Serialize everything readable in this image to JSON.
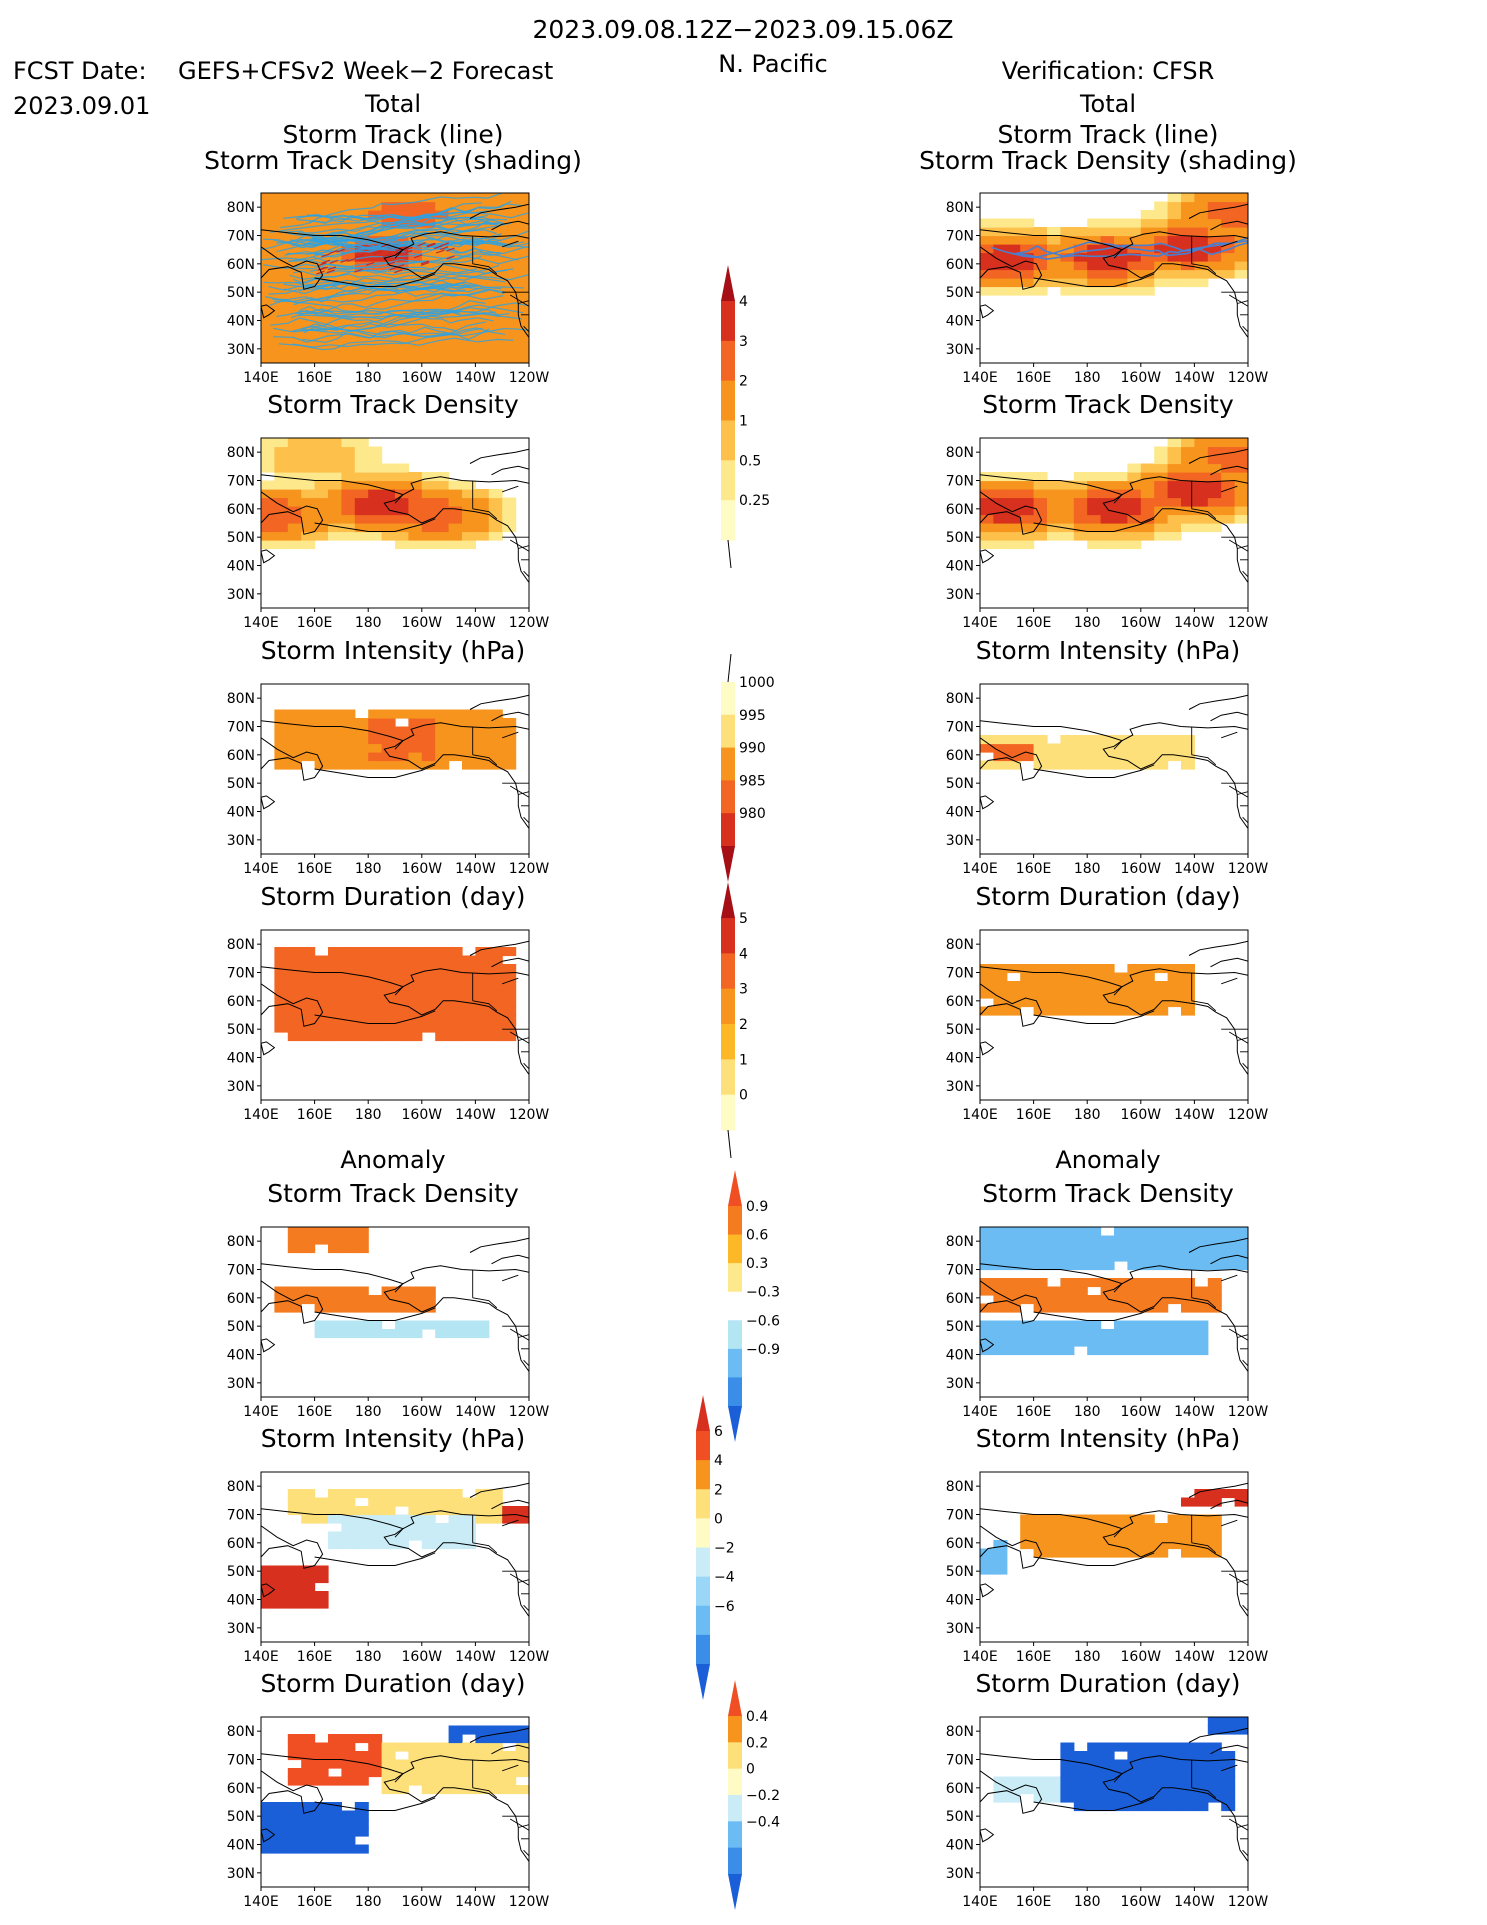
{
  "header": {
    "date_range": "2023.09.08.12Z−2023.09.15.06Z",
    "region": "N. Pacific",
    "fcst_prefix": "FCST Date:",
    "fcst_model": "GEFS+CFSv2 Week−2 Forecast",
    "fcst_date": "2023.09.01",
    "verification": "Verification: CFSR",
    "section_total": "Total",
    "section_anomaly": "Anomaly"
  },
  "colors": {
    "red_text": "#e8202a",
    "blue_text": "#1f3cf0",
    "track_fcst": "#29a3e6",
    "track_obs": "#4a7fd0"
  },
  "panel_titles": {
    "track_line": "Storm Track (line)",
    "track_shading": "Storm Track Density (shading)",
    "density": "Storm Track Density",
    "intensity": "Storm Intensity (hPa)",
    "duration": "Storm Duration (day)"
  },
  "axes": {
    "lat_ticks": [
      "80N",
      "70N",
      "60N",
      "50N",
      "40N",
      "30N"
    ],
    "lon_ticks": [
      "140E",
      "160E",
      "180",
      "160W",
      "140W",
      "120W"
    ]
  },
  "colorbars": {
    "density": {
      "labels": [
        "4",
        "3",
        "2",
        "1",
        "0.5",
        "0.25"
      ],
      "colors": [
        "#a50f15",
        "#d7301f",
        "#f26522",
        "#f7941d",
        "#fdc04a",
        "#fde98c",
        "#fffbc4"
      ]
    },
    "intensity": {
      "labels": [
        "1000",
        "995",
        "990",
        "985",
        "980"
      ],
      "colors": [
        "#fffbc4",
        "#fde07a",
        "#f7941d",
        "#f26522",
        "#d7301f",
        "#a50f15"
      ]
    },
    "duration": {
      "labels": [
        "5",
        "4",
        "3",
        "2",
        "1",
        "0"
      ],
      "colors": [
        "#a50f15",
        "#d7301f",
        "#f26522",
        "#f7941d",
        "#fdb827",
        "#fde07a",
        "#fffbc4"
      ]
    },
    "anom_density": {
      "labels": [
        "0.9",
        "0.6",
        "0.3",
        "−0.3",
        "−0.6",
        "−0.9"
      ],
      "colors": [
        "#f04e23",
        "#f47b20",
        "#fdb827",
        "#fde98c",
        "#ffffff",
        "#b3e5f3",
        "#6bbcf2",
        "#3a8ee8",
        "#1a5fd8"
      ]
    },
    "anom_intensity": {
      "labels": [
        "6",
        "4",
        "2",
        "0",
        "−2",
        "−4",
        "−6"
      ],
      "colors": [
        "#d7301f",
        "#f04e23",
        "#f7941d",
        "#fde07a",
        "#fffbc4",
        "#c9ecf7",
        "#9ad6f5",
        "#6bbcf2",
        "#3a8ee8",
        "#1a5fd8"
      ]
    },
    "anom_duration": {
      "labels": [
        "0.4",
        "0.2",
        "0",
        "−0.2",
        "−0.4"
      ],
      "colors": [
        "#f04e23",
        "#f7941d",
        "#fde07a",
        "#fffbc4",
        "#c9ecf7",
        "#6bbcf2",
        "#3a8ee8",
        "#1a5fd8"
      ]
    }
  },
  "chart_data": [
    {
      "type": "heatmap",
      "panel": "fcst_total_track",
      "title": "Storm Track (line) / Storm Track Density (shading)",
      "xlim": [
        140,
        240
      ],
      "ylim": [
        25,
        85
      ],
      "blobs": [
        {
          "lon": 185,
          "lat": 64,
          "value": 4
        },
        {
          "lon": 195,
          "lat": 78,
          "value": 3
        },
        {
          "lon": 225,
          "lat": 70,
          "value": 2
        }
      ],
      "background_value": 1,
      "tracks": "many"
    },
    {
      "type": "heatmap",
      "panel": "obs_total_track",
      "title": "Storm Track (line) / Storm Track Density (shading)",
      "xlim": [
        140,
        240
      ],
      "ylim": [
        25,
        85
      ],
      "blobs": [
        {
          "lon": 150,
          "lat": 62,
          "value": 4
        },
        {
          "lon": 188,
          "lat": 62,
          "value": 4
        },
        {
          "lon": 218,
          "lat": 66,
          "value": 4
        },
        {
          "lon": 237,
          "lat": 78,
          "value": 3
        }
      ],
      "background_value": 0,
      "tracks": "few"
    },
    {
      "type": "heatmap",
      "panel": "fcst_total_density",
      "title": "Storm Track Density",
      "xlim": [
        140,
        240
      ],
      "ylim": [
        25,
        85
      ],
      "blobs": [
        {
          "lon": 145,
          "lat": 58,
          "value": 3
        },
        {
          "lon": 185,
          "lat": 62,
          "value": 4
        },
        {
          "lon": 205,
          "lat": 58,
          "value": 3
        },
        {
          "lon": 160,
          "lat": 78,
          "value": 1
        }
      ]
    },
    {
      "type": "heatmap",
      "panel": "obs_total_density",
      "title": "Storm Track Density",
      "xlim": [
        140,
        240
      ],
      "ylim": [
        25,
        85
      ],
      "blobs": [
        {
          "lon": 150,
          "lat": 60,
          "value": 4
        },
        {
          "lon": 190,
          "lat": 60,
          "value": 4
        },
        {
          "lon": 220,
          "lat": 66,
          "value": 4
        },
        {
          "lon": 237,
          "lat": 78,
          "value": 3
        }
      ]
    },
    {
      "type": "heatmap",
      "panel": "fcst_total_intensity",
      "title": "Storm Intensity (hPa)",
      "units": "hPa",
      "xlim": [
        140,
        240
      ],
      "ylim": [
        25,
        85
      ],
      "regions": [
        {
          "lon": [
            145,
            235
          ],
          "lat": [
            55,
            75
          ],
          "value": 994
        },
        {
          "lon": [
            180,
            205
          ],
          "lat": [
            58,
            72
          ],
          "value": 989
        }
      ]
    },
    {
      "type": "heatmap",
      "panel": "obs_total_intensity",
      "title": "Storm Intensity (hPa)",
      "units": "hPa",
      "xlim": [
        140,
        240
      ],
      "ylim": [
        25,
        85
      ],
      "regions": [
        {
          "lon": [
            140,
            220
          ],
          "lat": [
            55,
            67
          ],
          "value": 999
        },
        {
          "lon": [
            140,
            160
          ],
          "lat": [
            57,
            64
          ],
          "value": 989
        }
      ]
    },
    {
      "type": "heatmap",
      "panel": "fcst_total_duration",
      "title": "Storm Duration (day)",
      "units": "day",
      "xlim": [
        140,
        240
      ],
      "ylim": [
        25,
        85
      ],
      "regions": [
        {
          "lon": [
            145,
            235
          ],
          "lat": [
            45,
            80
          ],
          "value": 3.5
        }
      ]
    },
    {
      "type": "heatmap",
      "panel": "obs_total_duration",
      "title": "Storm Duration (day)",
      "units": "day",
      "xlim": [
        140,
        240
      ],
      "ylim": [
        25,
        85
      ],
      "regions": [
        {
          "lon": [
            140,
            220
          ],
          "lat": [
            55,
            72
          ],
          "value": 2.5
        }
      ]
    },
    {
      "type": "heatmap",
      "panel": "fcst_anom_density",
      "title": "Storm Track Density",
      "xlim": [
        140,
        240
      ],
      "ylim": [
        25,
        85
      ],
      "regions": [
        {
          "lon": [
            150,
            180
          ],
          "lat": [
            75,
            85
          ],
          "value": 0.7
        },
        {
          "lon": [
            145,
            205
          ],
          "lat": [
            55,
            65
          ],
          "value": 0.8
        },
        {
          "lon": [
            160,
            225
          ],
          "lat": [
            45,
            52
          ],
          "value": -0.5
        },
        {
          "lon": [
            145,
            175
          ],
          "lat": [
            28,
            45
          ],
          "value": -0.2
        }
      ]
    },
    {
      "type": "heatmap",
      "panel": "obs_anom_density",
      "title": "Storm Track Density",
      "xlim": [
        140,
        240
      ],
      "ylim": [
        25,
        85
      ],
      "regions": [
        {
          "lon": [
            140,
            240
          ],
          "lat": [
            70,
            85
          ],
          "value": -0.8
        },
        {
          "lon": [
            140,
            230
          ],
          "lat": [
            55,
            66
          ],
          "value": 0.8
        },
        {
          "lon": [
            140,
            225
          ],
          "lat": [
            40,
            53
          ],
          "value": -0.8
        },
        {
          "lon": [
            140,
            150
          ],
          "lat": [
            28,
            40
          ],
          "value": -0.2
        }
      ]
    },
    {
      "type": "heatmap",
      "panel": "fcst_anom_intensity",
      "title": "Storm Intensity (hPa)",
      "units": "hPa",
      "xlim": [
        140,
        240
      ],
      "ylim": [
        25,
        85
      ],
      "regions": [
        {
          "lon": [
            150,
            230
          ],
          "lat": [
            68,
            78
          ],
          "value": 1
        },
        {
          "lon": [
            165,
            220
          ],
          "lat": [
            58,
            70
          ],
          "value": -1
        },
        {
          "lon": [
            140,
            165
          ],
          "lat": [
            38,
            52
          ],
          "value": 4
        },
        {
          "lon": [
            232,
            240
          ],
          "lat": [
            66,
            74
          ],
          "value": 5
        }
      ]
    },
    {
      "type": "heatmap",
      "panel": "obs_anom_intensity",
      "title": "Storm Intensity (hPa)",
      "units": "hPa",
      "xlim": [
        140,
        240
      ],
      "ylim": [
        25,
        85
      ],
      "regions": [
        {
          "lon": [
            175,
            200
          ],
          "lat": [
            55,
            70
          ],
          "value": 6
        },
        {
          "lon": [
            155,
            230
          ],
          "lat": [
            55,
            70
          ],
          "value": 3
        },
        {
          "lon": [
            140,
            150
          ],
          "lat": [
            48,
            60
          ],
          "value": -3
        },
        {
          "lon": [
            215,
            240
          ],
          "lat": [
            72,
            78
          ],
          "value": 4
        }
      ]
    },
    {
      "type": "heatmap",
      "panel": "fcst_anom_duration",
      "title": "Storm Duration (day)",
      "units": "day",
      "xlim": [
        140,
        240
      ],
      "ylim": [
        25,
        85
      ],
      "regions": [
        {
          "lon": [
            150,
            185
          ],
          "lat": [
            62,
            78
          ],
          "value": 0.4
        },
        {
          "lon": [
            140,
            180
          ],
          "lat": [
            38,
            55
          ],
          "value": -0.3
        },
        {
          "lon": [
            185,
            240
          ],
          "lat": [
            58,
            75
          ],
          "value": 0.1
        },
        {
          "lon": [
            210,
            240
          ],
          "lat": [
            75,
            82
          ],
          "value": -0.3
        }
      ]
    },
    {
      "type": "heatmap",
      "panel": "obs_anom_duration",
      "title": "Storm Duration (day)",
      "units": "day",
      "xlim": [
        140,
        240
      ],
      "ylim": [
        25,
        85
      ],
      "regions": [
        {
          "lon": [
            170,
            235
          ],
          "lat": [
            52,
            75
          ],
          "value": -0.4
        },
        {
          "lon": [
            145,
            170
          ],
          "lat": [
            55,
            65
          ],
          "value": -0.1
        },
        {
          "lon": [
            225,
            240
          ],
          "lat": [
            78,
            85
          ],
          "value": -0.4
        }
      ]
    }
  ]
}
